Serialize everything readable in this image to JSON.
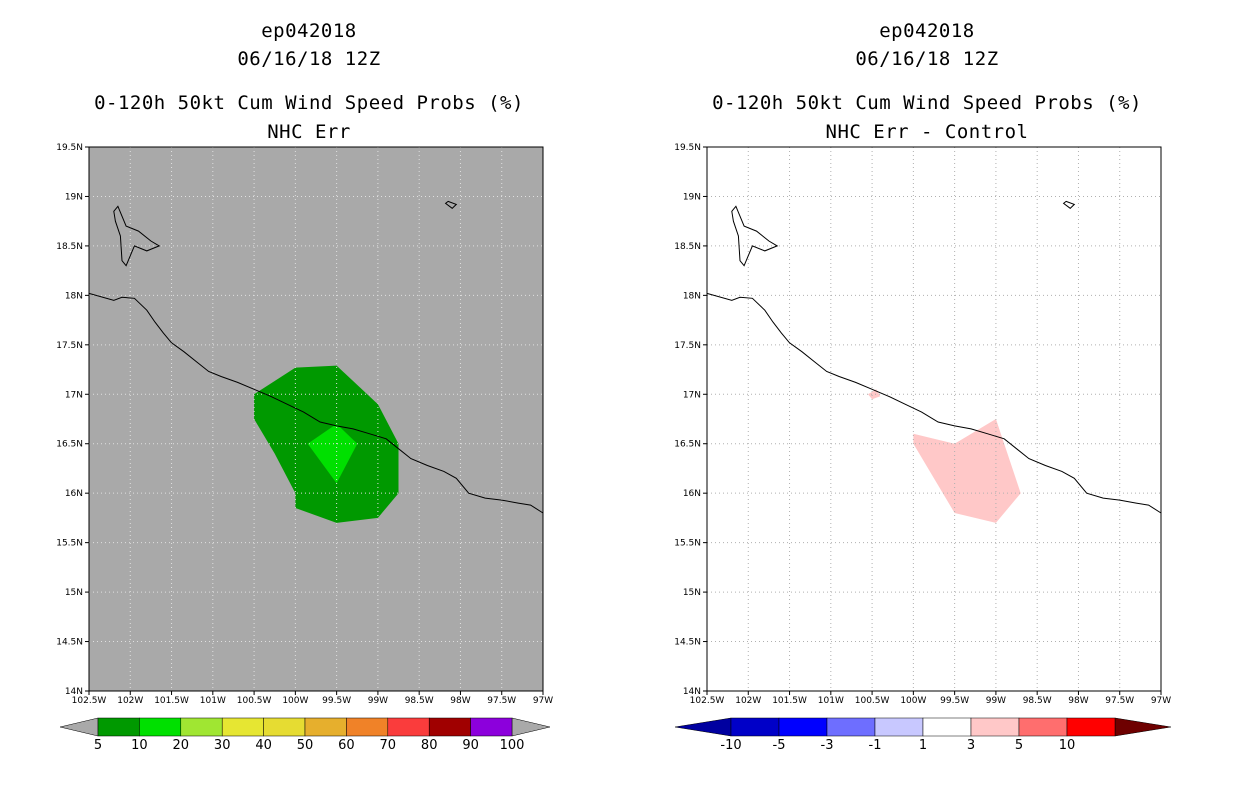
{
  "chart_data": [
    {
      "type": "map-contour",
      "title_lines": [
        "ep042018",
        "06/16/18 12Z",
        "0-120h 50kt Cum Wind Speed Probs (%)",
        "NHC Err"
      ],
      "x_range": [
        -102.5,
        -97.0
      ],
      "y_range": [
        14.0,
        19.5
      ],
      "x_ticks": [
        "102.5W",
        "102W",
        "101.5W",
        "101W",
        "100.5W",
        "100W",
        "99.5W",
        "99W",
        "98.5W",
        "98W",
        "97.5W",
        "97W"
      ],
      "y_ticks": [
        "14N",
        "14.5N",
        "15N",
        "15.5N",
        "16N",
        "16.5N",
        "17N",
        "17.5N",
        "18N",
        "18.5N",
        "19N",
        "19.5N"
      ],
      "grid": true,
      "background_color": "#a9a9a9",
      "regions": [
        {
          "name": "5-10%",
          "color": "#009900",
          "polygon": [
            [
              -100.0,
              16.0
            ],
            [
              -100.25,
              16.4
            ],
            [
              -100.5,
              16.75
            ],
            [
              -100.5,
              17.0
            ],
            [
              -100.0,
              17.27
            ],
            [
              -99.5,
              17.29
            ],
            [
              -99.0,
              16.9
            ],
            [
              -98.75,
              16.5
            ],
            [
              -98.75,
              16.0
            ],
            [
              -99.0,
              15.75
            ],
            [
              -99.5,
              15.7
            ],
            [
              -100.0,
              15.85
            ]
          ]
        },
        {
          "name": "10-20%",
          "color": "#00e000",
          "polygon": [
            [
              -99.5,
              16.1
            ],
            [
              -99.85,
              16.5
            ],
            [
              -99.5,
              16.7
            ],
            [
              -99.25,
              16.5
            ]
          ]
        }
      ],
      "colorbar": {
        "labels": [
          "5",
          "10",
          "20",
          "30",
          "40",
          "50",
          "60",
          "70",
          "80",
          "90",
          "100"
        ],
        "colors": [
          "#009900",
          "#00e000",
          "#a0e632",
          "#e6e632",
          "#e6dc32",
          "#e6af2d",
          "#f08228",
          "#fa3c3c",
          "#a00000",
          "#8c00dc"
        ],
        "under_color": "#a9a9a9",
        "over_color": "#a9a9a9"
      }
    },
    {
      "type": "map-contour",
      "title_lines": [
        "ep042018",
        "06/16/18 12Z",
        "0-120h 50kt Cum Wind Speed Probs (%)",
        "NHC Err - Control"
      ],
      "x_range": [
        -102.5,
        -97.0
      ],
      "y_range": [
        14.0,
        19.5
      ],
      "x_ticks": [
        "102.5W",
        "102W",
        "101.5W",
        "101W",
        "100.5W",
        "100W",
        "99.5W",
        "99W",
        "98.5W",
        "98W",
        "97.5W",
        "97W"
      ],
      "y_ticks": [
        "14N",
        "14.5N",
        "15N",
        "15.5N",
        "16N",
        "16.5N",
        "17N",
        "17.5N",
        "18N",
        "18.5N",
        "19N",
        "19.5N"
      ],
      "grid": true,
      "background_color": "#ffffff",
      "regions": [
        {
          "name": "1-3 diff",
          "color": "#ffc8c8",
          "polygon": [
            [
              -100.0,
              16.6
            ],
            [
              -99.5,
              16.5
            ],
            [
              -99.0,
              16.75
            ],
            [
              -98.7,
              16.0
            ],
            [
              -99.0,
              15.7
            ],
            [
              -99.5,
              15.8
            ],
            [
              -100.0,
              16.5
            ]
          ]
        },
        {
          "name": "1-3 diff small",
          "color": "#ffc8c8",
          "polygon": [
            [
              -100.55,
              17.0
            ],
            [
              -100.45,
              17.05
            ],
            [
              -100.4,
              16.98
            ],
            [
              -100.5,
              16.95
            ]
          ]
        }
      ],
      "colorbar": {
        "labels": [
          "-10",
          "-5",
          "-3",
          "-1",
          "1",
          "3",
          "5",
          "10"
        ],
        "colors": [
          "#0000c8",
          "#0000ff",
          "#6e6eff",
          "#c8c8ff",
          "#ffffff",
          "#ffc8c8",
          "#ff6e6e",
          "#ff0000"
        ],
        "under_color": "#0000a0",
        "over_color": "#6e0000"
      }
    }
  ],
  "coastline": [
    [
      -102.5,
      18.02
    ],
    [
      -102.2,
      17.95
    ],
    [
      -102.1,
      17.98
    ],
    [
      -101.95,
      17.97
    ],
    [
      -101.8,
      17.85
    ],
    [
      -101.7,
      17.73
    ],
    [
      -101.6,
      17.62
    ],
    [
      -101.5,
      17.52
    ],
    [
      -101.35,
      17.43
    ],
    [
      -101.2,
      17.33
    ],
    [
      -101.05,
      17.23
    ],
    [
      -100.9,
      17.18
    ],
    [
      -100.7,
      17.12
    ],
    [
      -100.5,
      17.05
    ],
    [
      -100.3,
      16.98
    ],
    [
      -100.1,
      16.9
    ],
    [
      -99.9,
      16.82
    ],
    [
      -99.7,
      16.72
    ],
    [
      -99.5,
      16.68
    ],
    [
      -99.3,
      16.65
    ],
    [
      -99.1,
      16.6
    ],
    [
      -98.9,
      16.55
    ],
    [
      -98.75,
      16.45
    ],
    [
      -98.6,
      16.35
    ],
    [
      -98.4,
      16.28
    ],
    [
      -98.2,
      16.22
    ],
    [
      -98.05,
      16.15
    ],
    [
      -97.9,
      16.0
    ],
    [
      -97.7,
      15.95
    ],
    [
      -97.5,
      15.93
    ],
    [
      -97.3,
      15.9
    ],
    [
      -97.15,
      15.88
    ],
    [
      -97.0,
      15.8
    ]
  ],
  "lake": [
    [
      -102.2,
      18.85
    ],
    [
      -102.15,
      18.9
    ],
    [
      -102.1,
      18.8
    ],
    [
      -102.05,
      18.7
    ],
    [
      -101.9,
      18.65
    ],
    [
      -101.75,
      18.55
    ],
    [
      -101.65,
      18.5
    ],
    [
      -101.8,
      18.45
    ],
    [
      -101.95,
      18.5
    ],
    [
      -102.05,
      18.3
    ],
    [
      -102.1,
      18.35
    ],
    [
      -102.12,
      18.6
    ],
    [
      -102.18,
      18.75
    ]
  ],
  "island": [
    [
      -98.15,
      18.95
    ],
    [
      -98.05,
      18.92
    ],
    [
      -98.1,
      18.88
    ],
    [
      -98.18,
      18.93
    ]
  ]
}
